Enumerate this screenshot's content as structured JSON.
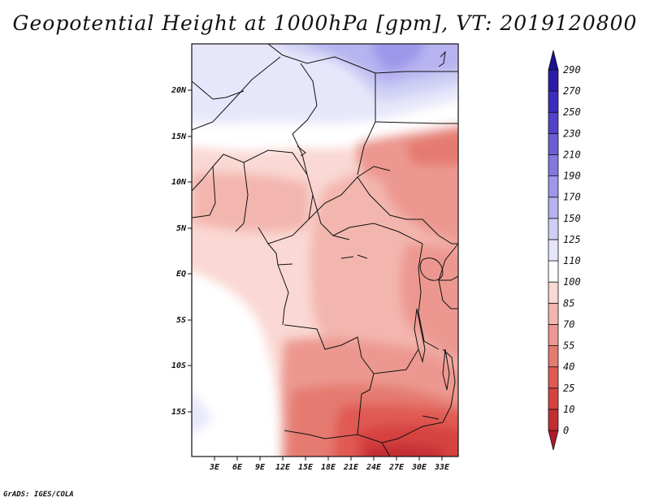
{
  "title": "Geopotential Height at 1000hPa [gpm], VT: 2019120800",
  "credit": "GrADS: IGES/COLA",
  "lat_labels": [
    "20N",
    "15N",
    "10N",
    "5N",
    "EQ",
    "5S",
    "10S",
    "15S"
  ],
  "lon_labels": [
    "3E",
    "6E",
    "9E",
    "12E",
    "15E",
    "18E",
    "21E",
    "24E",
    "27E",
    "30E",
    "33E"
  ],
  "colorbar": {
    "levels": [
      "0",
      "10",
      "25",
      "40",
      "55",
      "70",
      "85",
      "100",
      "110",
      "125",
      "150",
      "170",
      "190",
      "210",
      "230",
      "250",
      "270",
      "290"
    ],
    "colors": [
      "#b2182b",
      "#c22f33",
      "#d6423f",
      "#e05a52",
      "#e57a70",
      "#ec9890",
      "#f3b6af",
      "#fad8d3",
      "#ffffff",
      "#e7e7fb",
      "#cfcff5",
      "#b7b3f0",
      "#9d96ea",
      "#8378e0",
      "#6a5dd6",
      "#5143c9",
      "#3a2cbd",
      "#2a1ca8",
      "#1c1190"
    ]
  }
}
